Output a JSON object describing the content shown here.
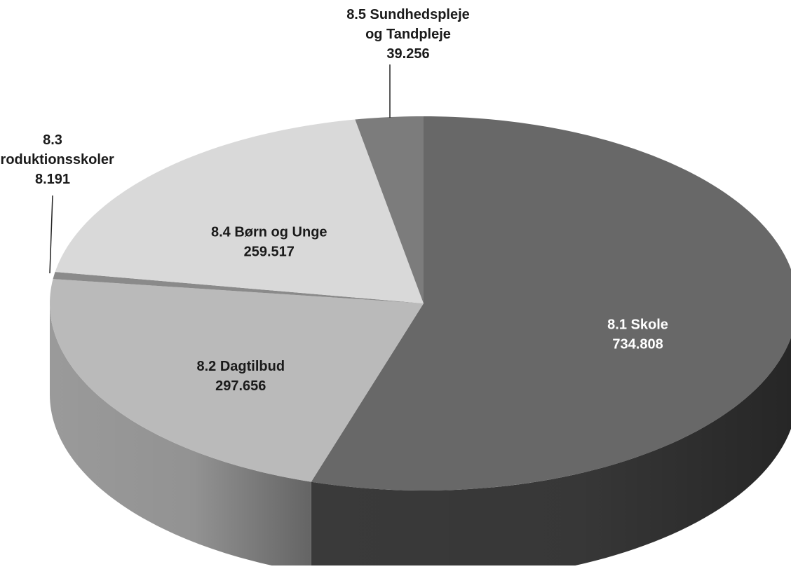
{
  "chart_data": {
    "type": "pie",
    "title": "",
    "slices": [
      {
        "label_lines": [
          "8.1 Skole"
        ],
        "value_text": "734.808",
        "value": 734808,
        "color": "#686868",
        "side_color": "#3a3a3a",
        "label_color": "#ffffff",
        "label_placement": "inside"
      },
      {
        "label_lines": [
          "8.2 Dagtilbud"
        ],
        "value_text": "297.656",
        "value": 297656,
        "color": "#bababa",
        "side_color": "#9a9a9a",
        "label_color": "#1a1a1a",
        "label_placement": "inside"
      },
      {
        "label_lines": [
          "8.3",
          "Produktionsskoler"
        ],
        "value_text": "8.191",
        "value": 8191,
        "color": "#8a8a8a",
        "side_color": "#6a6a6a",
        "label_color": "#1a1a1a",
        "label_placement": "outside-left"
      },
      {
        "label_lines": [
          "8.4 Børn og Unge"
        ],
        "value_text": "259.517",
        "value": 259517,
        "color": "#d9d9d9",
        "side_color": "#b5b5b5",
        "label_color": "#1a1a1a",
        "label_placement": "inside"
      },
      {
        "label_lines": [
          "8.5 Sundhedspleje",
          "og Tandpleje"
        ],
        "value_text": "39.256",
        "value": 39256,
        "color": "#7c7c7c",
        "side_color": "#5a5a5a",
        "label_color": "#1a1a1a",
        "label_placement": "outside-top"
      }
    ],
    "start_angle": "12 o'clock",
    "direction": "clockwise",
    "style": "3d-tilted"
  }
}
